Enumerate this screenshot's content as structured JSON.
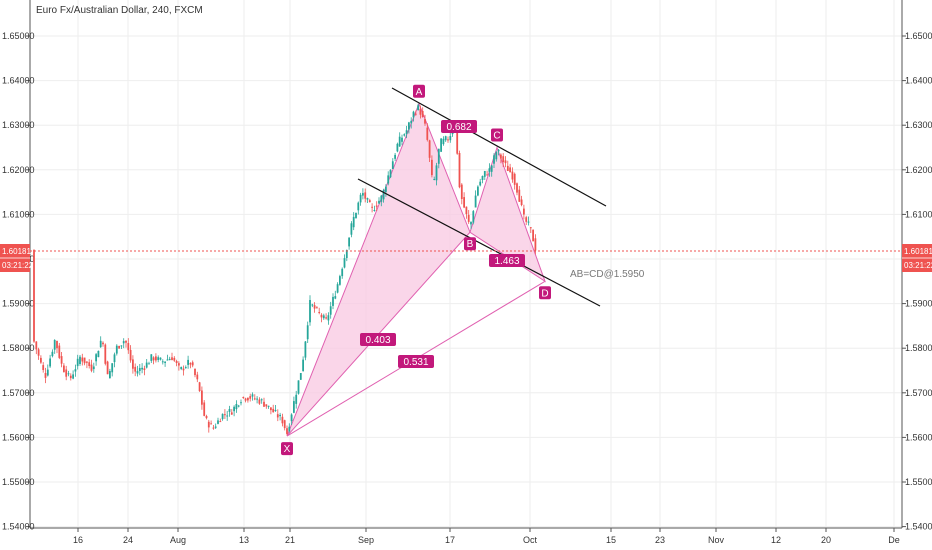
{
  "chart_header": {
    "symbol_title": "Euro Fx/Australian Dollar, 240, FXCM"
  },
  "colors": {
    "bull": "#26a69a",
    "bear": "#ef5350",
    "pattern_fill": "#f8c8e2",
    "pattern_stroke": "#e060b0",
    "label_bg": "#c2187b",
    "price_label_bg": "#ef5350",
    "grid": "#eeeeee",
    "trendline": "#111111"
  },
  "price_axis": {
    "ticks": [
      "1.65000",
      "1.64000",
      "1.63000",
      "1.62000",
      "1.61000",
      "1.60000",
      "1.59000",
      "1.58000",
      "1.57000",
      "1.56000",
      "1.55000",
      "1.54000"
    ],
    "last_price": "1.60181",
    "countdown": "03:21:22"
  },
  "chart_data": {
    "type": "candlestick",
    "x_labels": [
      "16",
      "24",
      "Aug",
      "13",
      "21",
      "Sep",
      "17",
      "Oct",
      "15",
      "23",
      "Nov",
      "12",
      "20",
      "De"
    ],
    "ylim": [
      1.54,
      1.65
    ],
    "grid": true,
    "price_line": 1.60181,
    "harmonic_pattern": {
      "points": [
        {
          "label": "X",
          "price": 1.5603
        },
        {
          "label": "A",
          "price": 1.6348
        },
        {
          "label": "B",
          "price": 1.606
        },
        {
          "label": "C",
          "price": 1.625
        },
        {
          "label": "D",
          "price": 1.595
        }
      ],
      "ratios": [
        "0.403",
        "0.682",
        "1.463",
        "0.531"
      ],
      "annotation": "AB=CD@1.5950"
    }
  }
}
